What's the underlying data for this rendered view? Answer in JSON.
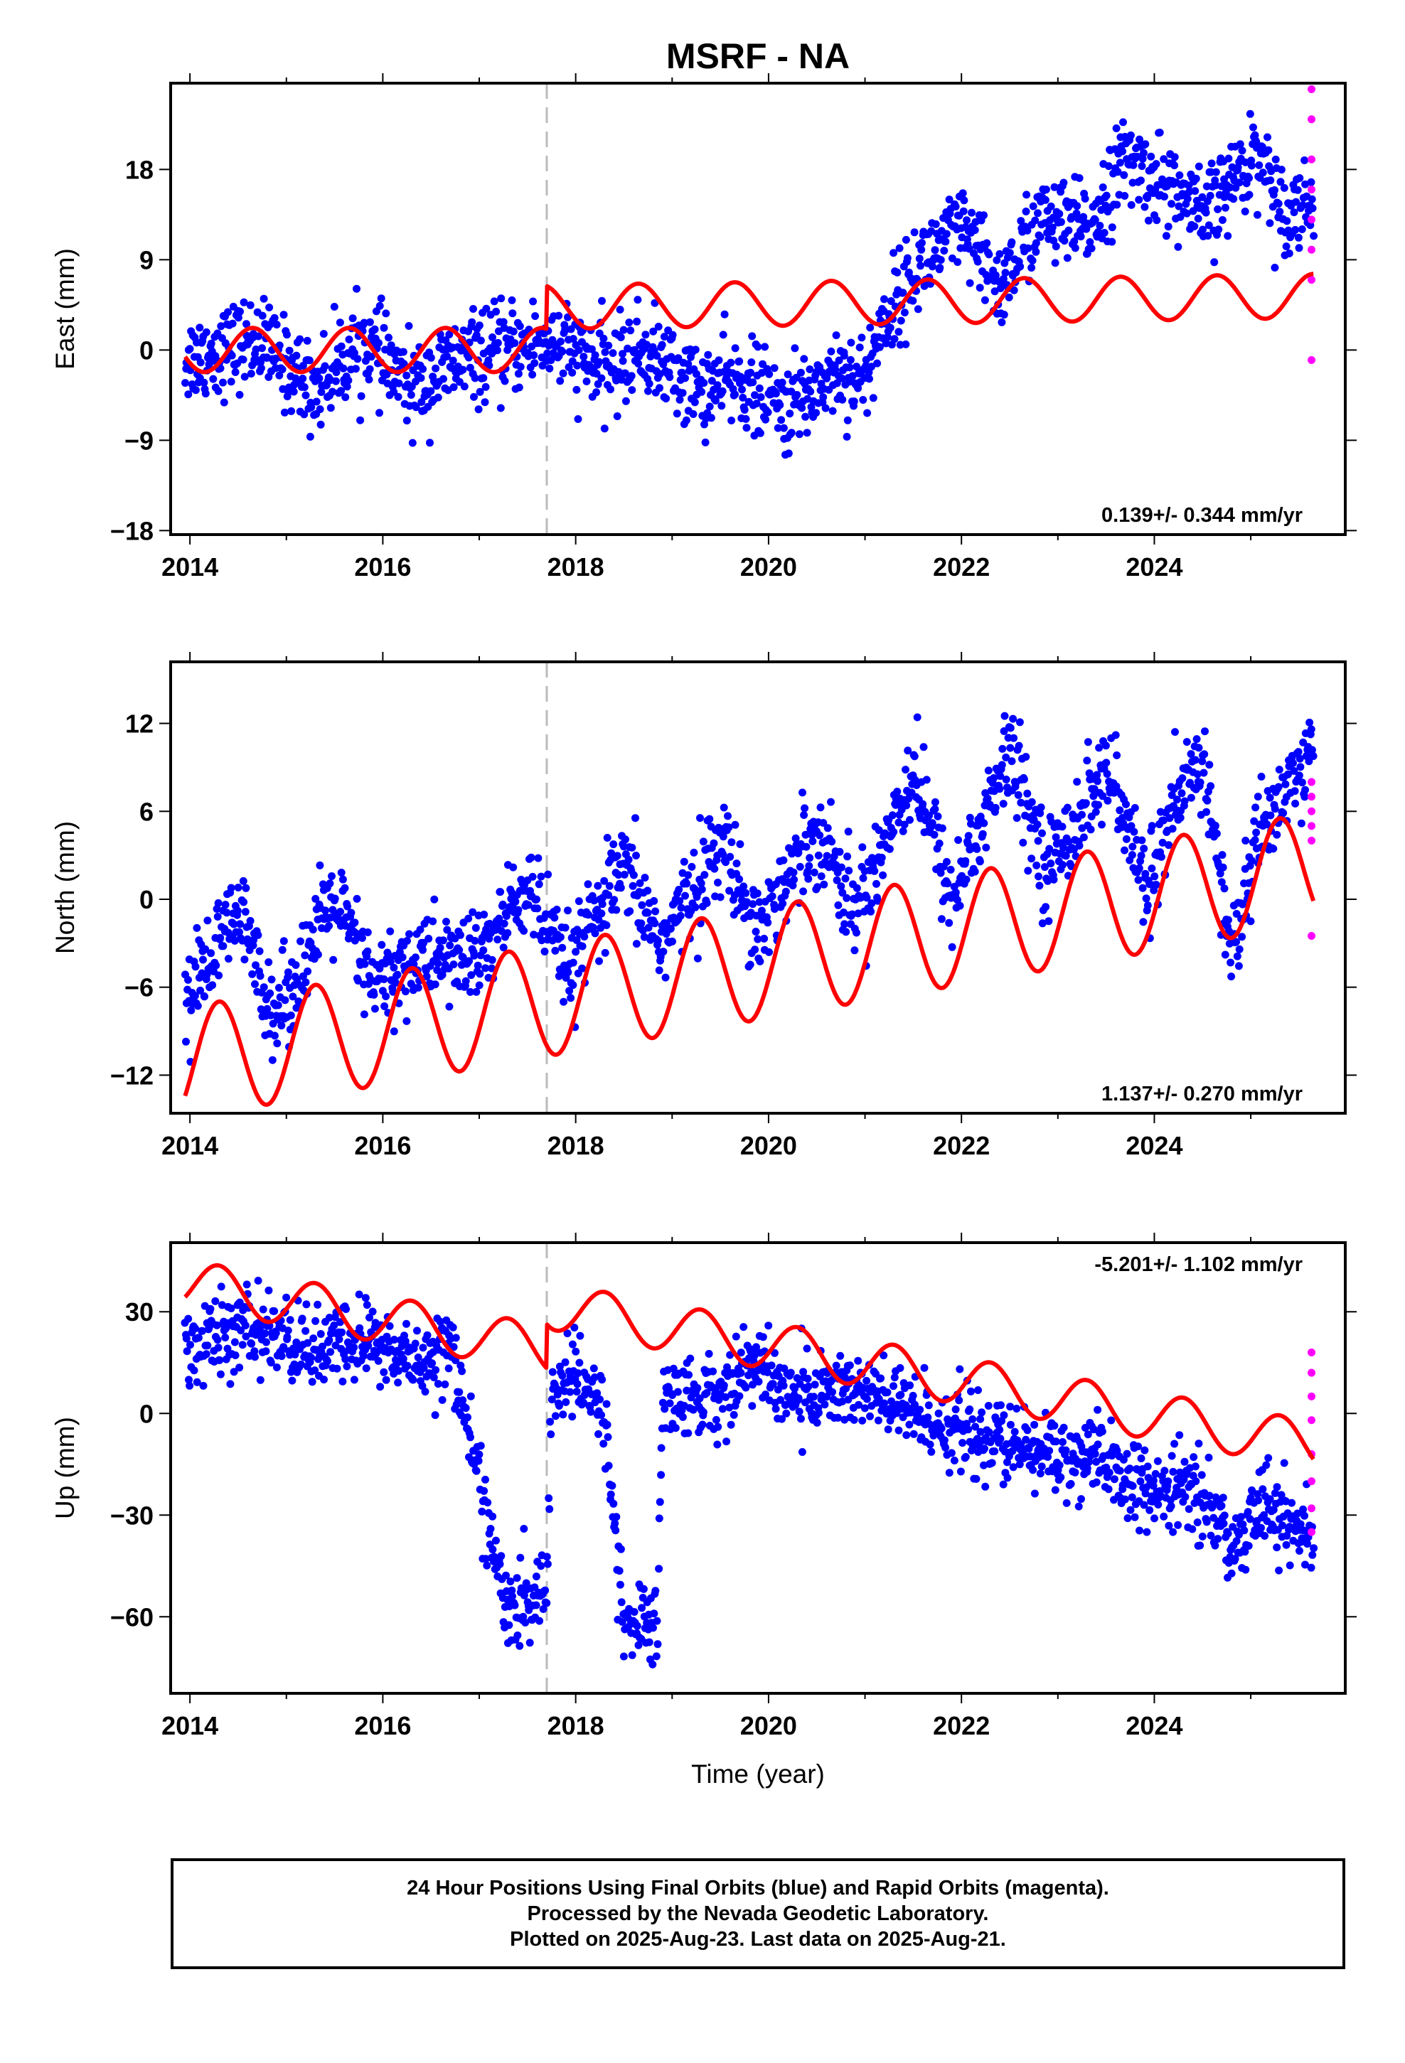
{
  "chart_data": {
    "type": "scatter",
    "title": "MSRF - NA",
    "xlabel": "Time (year)",
    "xlim": [
      2013.8,
      2025.98
    ],
    "xticks": [
      2014,
      2016,
      2018,
      2020,
      2022,
      2024
    ],
    "xtick_labels": [
      "2014",
      "2016",
      "2018",
      "2020",
      "2022",
      "2024"
    ],
    "equipment_change_epoch": 2017.7,
    "colors": {
      "final": "#0000ff",
      "rapid": "#ff00ff",
      "model": "#ff0000",
      "marker": "#bbbbbb"
    },
    "panels": [
      {
        "id": "east",
        "ylabel": "East (mm)",
        "ylim": [
          -18.4,
          26.6
        ],
        "yticks": [
          -18,
          -9,
          0,
          9,
          18
        ],
        "ytick_labels": [
          "−18",
          "−9",
          "0",
          "9",
          "18"
        ],
        "rate_text": "0.139+/- 0.344 mm/yr",
        "rate_position": "bottom-right",
        "final_trend": [
          [
            2013.95,
            -1
          ],
          [
            2014.7,
            1
          ],
          [
            2015.3,
            -4
          ],
          [
            2015.8,
            1
          ],
          [
            2016.3,
            -4
          ],
          [
            2016.8,
            -1
          ],
          [
            2017.3,
            0
          ],
          [
            2017.7,
            1
          ],
          [
            2018.3,
            -2
          ],
          [
            2018.7,
            0
          ],
          [
            2019.3,
            -4
          ],
          [
            2019.7,
            -3
          ],
          [
            2020.2,
            -6
          ],
          [
            2020.7,
            -2
          ],
          [
            2021.0,
            -3
          ],
          [
            2021.2,
            3
          ],
          [
            2021.6,
            9
          ],
          [
            2022.0,
            12
          ],
          [
            2022.4,
            6
          ],
          [
            2022.8,
            13
          ],
          [
            2023.3,
            12
          ],
          [
            2023.7,
            19
          ],
          [
            2024.2,
            16
          ],
          [
            2024.5,
            13
          ],
          [
            2024.9,
            18
          ],
          [
            2025.1,
            20
          ],
          [
            2025.3,
            14
          ],
          [
            2025.65,
            15
          ]
        ],
        "final_scatter_sd": 2.2,
        "rapid": [
          [
            2025.63,
            26
          ],
          [
            2025.63,
            23
          ],
          [
            2025.63,
            19
          ],
          [
            2025.63,
            16
          ],
          [
            2025.63,
            13
          ],
          [
            2025.63,
            10
          ],
          [
            2025.63,
            7
          ],
          [
            2025.63,
            -1
          ]
        ],
        "model": {
          "pre": {
            "offset": 0,
            "slope": 0,
            "amp": 2.2,
            "phase": 0.4
          },
          "post": {
            "offset": 4.6,
            "slope": 0.139,
            "amp": 2.2,
            "phase": 0.4
          }
        }
      },
      {
        "id": "north",
        "ylabel": "North (mm)",
        "ylim": [
          -14.6,
          16.2
        ],
        "yticks": [
          -12,
          -6,
          0,
          6,
          12
        ],
        "ytick_labels": [
          "−12",
          "−6",
          "0",
          "6",
          "12"
        ],
        "rate_text": "1.137+/- 0.270 mm/yr",
        "rate_position": "bottom-right",
        "final_trend": [
          [
            2013.95,
            -7
          ],
          [
            2014.5,
            -1
          ],
          [
            2014.9,
            -8
          ],
          [
            2015.5,
            0
          ],
          [
            2015.9,
            -6
          ],
          [
            2016.4,
            -4
          ],
          [
            2017.0,
            -4
          ],
          [
            2017.5,
            1
          ],
          [
            2017.9,
            -5
          ],
          [
            2018.5,
            2
          ],
          [
            2018.9,
            -3
          ],
          [
            2019.5,
            4
          ],
          [
            2019.9,
            -2
          ],
          [
            2020.5,
            5
          ],
          [
            2020.9,
            -1
          ],
          [
            2021.5,
            9
          ],
          [
            2021.9,
            0
          ],
          [
            2022.5,
            10
          ],
          [
            2022.9,
            2
          ],
          [
            2023.5,
            9
          ],
          [
            2023.9,
            1
          ],
          [
            2024.5,
            10
          ],
          [
            2024.8,
            -4
          ],
          [
            2025.1,
            5
          ],
          [
            2025.65,
            10
          ]
        ],
        "final_scatter_sd": 1.6,
        "rapid": [
          [
            2025.63,
            8
          ],
          [
            2025.63,
            7
          ],
          [
            2025.63,
            6
          ],
          [
            2025.63,
            5
          ],
          [
            2025.63,
            4
          ],
          [
            2025.63,
            -2.5
          ]
        ],
        "model": {
          "pre": {
            "offset": -4.3,
            "slope": 1.137,
            "amp": 3.8,
            "phase": 0.05
          },
          "post": {
            "offset": -4.3,
            "slope": 1.137,
            "amp": 3.8,
            "phase": 0.05
          }
        }
      },
      {
        "id": "up",
        "ylabel": "Up (mm)",
        "ylim": [
          -82.6,
          50.4
        ],
        "yticks": [
          -60,
          -30,
          0,
          30
        ],
        "ytick_labels": [
          "−60",
          "−30",
          "0",
          "30"
        ],
        "rate_text": "-5.201+/- 1.102 mm/yr",
        "rate_position": "top-right",
        "final_trend": [
          [
            2013.95,
            20
          ],
          [
            2014.7,
            25
          ],
          [
            2015.3,
            18
          ],
          [
            2015.8,
            22
          ],
          [
            2016.3,
            15
          ],
          [
            2016.7,
            20
          ],
          [
            2017.3,
            -60
          ],
          [
            2017.7,
            -52
          ],
          [
            2017.75,
            8
          ],
          [
            2018.0,
            10
          ],
          [
            2018.3,
            0
          ],
          [
            2018.5,
            -62
          ],
          [
            2018.85,
            -62
          ],
          [
            2018.9,
            5
          ],
          [
            2019.5,
            5
          ],
          [
            2019.8,
            15
          ],
          [
            2020.3,
            5
          ],
          [
            2020.8,
            8
          ],
          [
            2021.5,
            0
          ],
          [
            2022.0,
            -5
          ],
          [
            2022.5,
            -10
          ],
          [
            2023.0,
            -12
          ],
          [
            2023.5,
            -15
          ],
          [
            2024.0,
            -25
          ],
          [
            2024.4,
            -20
          ],
          [
            2024.8,
            -40
          ],
          [
            2025.1,
            -25
          ],
          [
            2025.5,
            -35
          ],
          [
            2025.65,
            -38
          ]
        ],
        "final_scatter_sd": 6,
        "rapid": [
          [
            2025.63,
            18
          ],
          [
            2025.63,
            12
          ],
          [
            2025.63,
            5
          ],
          [
            2025.63,
            -2
          ],
          [
            2025.63,
            -12
          ],
          [
            2025.63,
            -20
          ],
          [
            2025.63,
            -28
          ],
          [
            2025.63,
            -35
          ]
        ],
        "model": {
          "pre": {
            "offset": 7,
            "slope": -5.201,
            "amp": 7,
            "phase": 0.05
          },
          "post": {
            "offset": 20,
            "slope": -5.201,
            "amp": 7,
            "phase": 0.05
          }
        }
      }
    ]
  },
  "caption": {
    "line1": "24 Hour Positions Using Final Orbits (blue) and Rapid Orbits (magenta).",
    "line2": "Processed by the Nevada Geodetic Laboratory.",
    "line3": "Plotted on 2025-Aug-23. Last data on 2025-Aug-21."
  }
}
